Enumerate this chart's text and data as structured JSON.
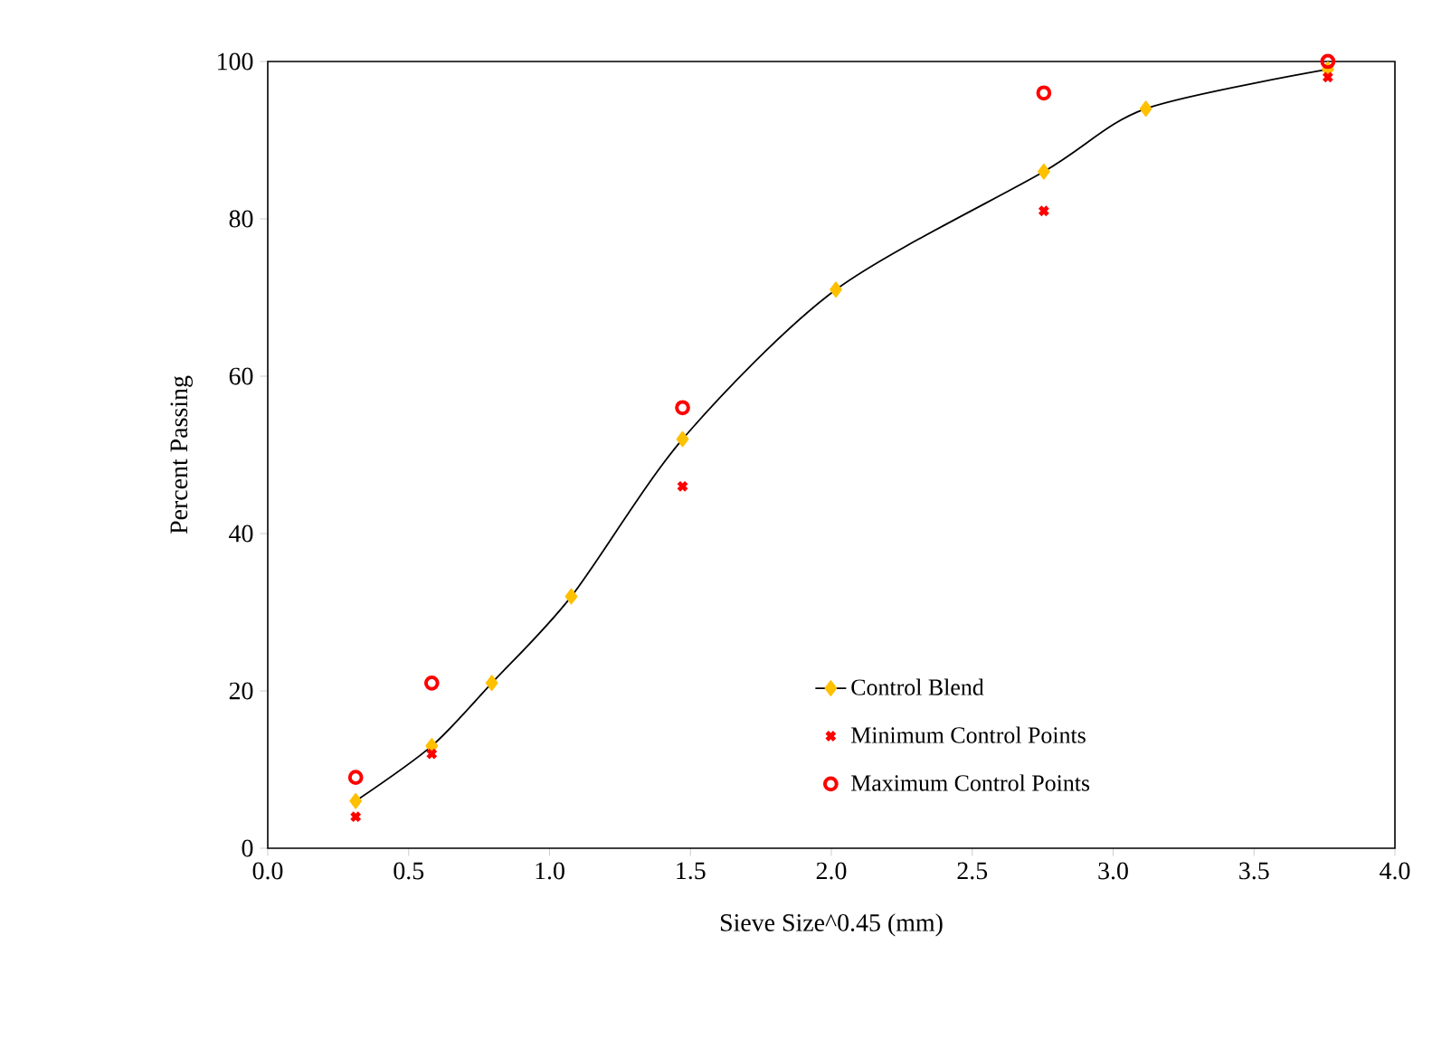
{
  "chart_data": {
    "type": "line",
    "xlabel": "Sieve Size^0.45 (mm)",
    "ylabel": "Percent Passing",
    "xlim": [
      0,
      4
    ],
    "ylim": [
      0,
      100
    ],
    "xticks": [
      {
        "value": 0,
        "label": "0.0"
      },
      {
        "value": 0.5,
        "label": "0.5"
      },
      {
        "value": 1,
        "label": "1.0"
      },
      {
        "value": 1.5,
        "label": "1.5"
      },
      {
        "value": 2,
        "label": "2.0"
      },
      {
        "value": 2.5,
        "label": "2.5"
      },
      {
        "value": 3,
        "label": "3.0"
      },
      {
        "value": 3.5,
        "label": "3.5"
      },
      {
        "value": 4,
        "label": "4.0"
      }
    ],
    "yticks": [
      0,
      20,
      40,
      60,
      80,
      100
    ],
    "grid": false,
    "legend": "bottom right",
    "series": [
      {
        "name": "Control Blend",
        "color": "#ffc000",
        "marker": "diamond",
        "line_style": "solid",
        "x": [
          0.312,
          0.582,
          0.795,
          1.077,
          1.472,
          2.016,
          2.754,
          3.116,
          3.762
        ],
        "values": [
          6,
          13,
          21,
          32,
          52,
          71,
          86,
          94,
          99
        ]
      },
      {
        "name": "Minimum Control Points",
        "type": "scatter",
        "color": "#ff0000",
        "marker": "cross",
        "x": [
          0.312,
          0.582,
          1.472,
          2.754,
          3.762
        ],
        "values": [
          4,
          12,
          46,
          81,
          98
        ]
      },
      {
        "name": "Maximum Control Points",
        "type": "scatter",
        "color": "#ff0000",
        "marker": "circle",
        "x": [
          0.312,
          0.582,
          1.472,
          2.754,
          3.762
        ],
        "values": [
          9,
          21,
          56,
          96,
          100
        ]
      }
    ]
  }
}
